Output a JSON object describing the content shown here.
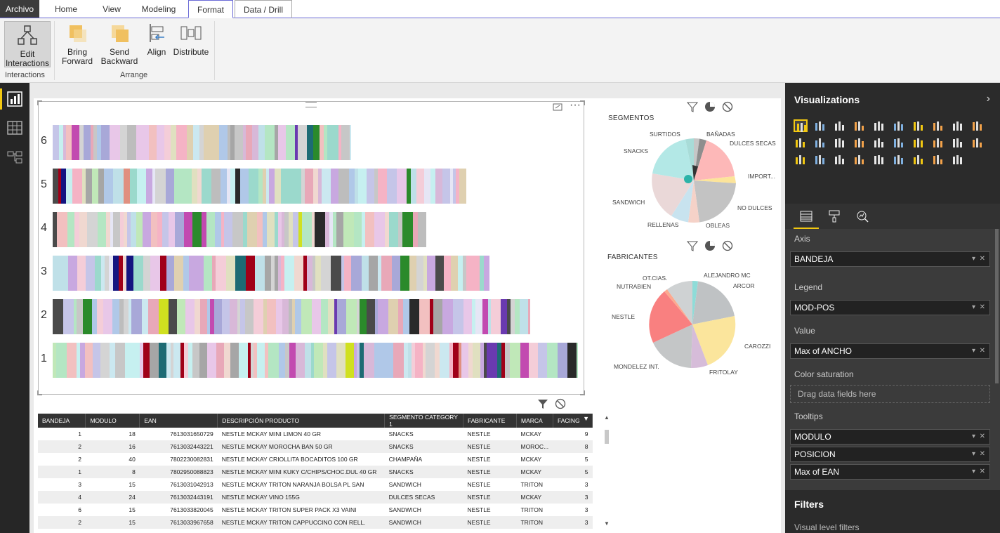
{
  "ribbon_tabs": [
    "Archivo",
    "Home",
    "View",
    "Modeling",
    "Format",
    "Data / Drill"
  ],
  "ribbon": {
    "edit_interactions": "Edit\nInteractions",
    "bring_forward": "Bring\nForward",
    "send_backward": "Send\nBackward",
    "align": "Align",
    "distribute": "Distribute",
    "group_interactions": "Interactions",
    "group_arrange": "Arrange"
  },
  "chart": {
    "row_labels": [
      "6",
      "5",
      "4",
      "3",
      "2",
      "1"
    ]
  },
  "pie1": {
    "title": "SEGMENTOS",
    "labels": [
      "SURTIDOS",
      "BAÑADAS",
      "DULCES SECAS",
      "SNACKS",
      "IMPORT...",
      "SANDWICH",
      "NO DULCES",
      "RELLENAS",
      "OBLEAS"
    ]
  },
  "pie2": {
    "title": "FABRICANTES",
    "labels": [
      "OT.CIAS.",
      "ALEJANDRO MC",
      "NUTRABIEN",
      "ARCOR",
      "NESTLE",
      "CAROZZI",
      "MONDELEZ INT.",
      "FRITOLAY"
    ]
  },
  "table": {
    "headers": [
      "BANDEJA",
      "MODULO",
      "EAN",
      "DESCRIPCIÓN PRODUCTO",
      "SEGMENTO CATEGORY 1",
      "FABRICANTE",
      "MARCA",
      "FACING"
    ],
    "rows": [
      [
        "1",
        "18",
        "7613031650729",
        "NESTLE MCKAY MINI LIMON 40 GR",
        "SNACKS",
        "NESTLE",
        "MCKAY",
        "9"
      ],
      [
        "2",
        "16",
        "7613032443221",
        "NESTLE MCKAY MOROCHA BAN 50 GR",
        "SNACKS",
        "NESTLE",
        "MOROC...",
        "8"
      ],
      [
        "2",
        "40",
        "7802230082831",
        "NESTLE MCKAY CRIOLLITA BOCADITOS 100 GR",
        "CHAMPAÑA",
        "NESTLE",
        "MCKAY",
        "5"
      ],
      [
        "1",
        "8",
        "7802950088823",
        "NESTLE MCKAY MINI KUKY C/CHIPS/CHOC.DUL 40 GR",
        "SNACKS",
        "NESTLE",
        "MCKAY",
        "5"
      ],
      [
        "3",
        "15",
        "7613031042913",
        "NESTLE MCKAY TRITON NARANJA BOLSA PL SAN",
        "SANDWICH",
        "NESTLE",
        "TRITON",
        "3"
      ],
      [
        "4",
        "24",
        "7613032443191",
        "NESTLE MCKAY VINO 155G",
        "DULCES SECAS",
        "NESTLE",
        "MCKAY",
        "3"
      ],
      [
        "6",
        "15",
        "7613033820045",
        "NESTLE MCKAY TRITON SUPER PACK X3 VAINI",
        "SANDWICH",
        "NESTLE",
        "TRITON",
        "3"
      ],
      [
        "2",
        "15",
        "7613033967658",
        "NESTLE MCKAY TRITON CAPPUCCINO CON RELL.",
        "SANDWICH",
        "NESTLE",
        "TRITON",
        "3"
      ]
    ]
  },
  "viz": {
    "title": "Visualizations",
    "axis_label": "Axis",
    "axis_value": "BANDEJA",
    "legend_label": "Legend",
    "legend_value": "MOD-POS",
    "value_label": "Value",
    "value_value": "Max of ANCHO",
    "color_label": "Color saturation",
    "color_placeholder": "Drag data fields here",
    "tooltips_label": "Tooltips",
    "tooltips": [
      "MODULO",
      "POSICION",
      "Max of EAN"
    ],
    "filters_title": "Filters",
    "visual_filters": "Visual level filters"
  },
  "colors": {
    "accent": "#f2c811",
    "ribbon_active": "#6b6bd6"
  }
}
